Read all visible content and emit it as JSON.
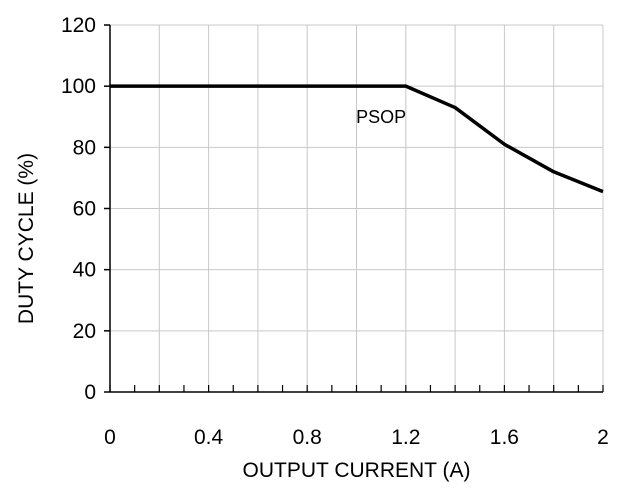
{
  "chart_data": {
    "type": "line",
    "title": "",
    "xlabel": "OUTPUT CURRENT (A)",
    "ylabel": "DUTY CYCLE (%)",
    "xlim": [
      0,
      2
    ],
    "ylim": [
      0,
      120
    ],
    "xticks": [
      0,
      0.4,
      0.8,
      1.2,
      1.6,
      2
    ],
    "xtick_labels": [
      "0",
      "0.4",
      "0.8",
      "1.2",
      "1.6",
      "2"
    ],
    "yticks": [
      0,
      20,
      40,
      60,
      80,
      100,
      120
    ],
    "ytick_labels": [
      "0",
      "20",
      "40",
      "60",
      "80",
      "100",
      "120"
    ],
    "x_minor_step": 0.1,
    "grid": true,
    "series": [
      {
        "x": [
          0,
          0.2,
          0.4,
          0.6,
          0.8,
          1.0,
          1.2,
          1.4,
          1.6,
          1.8,
          2.0
        ],
        "values": [
          100,
          100,
          100,
          100,
          100,
          100,
          100,
          93,
          81,
          72,
          65.5
        ]
      }
    ],
    "annotations": [
      {
        "text": "PSOP",
        "x": 1.1,
        "y": 88
      }
    ],
    "line_color": "#000000",
    "grid_color": "#c8c8c8"
  }
}
